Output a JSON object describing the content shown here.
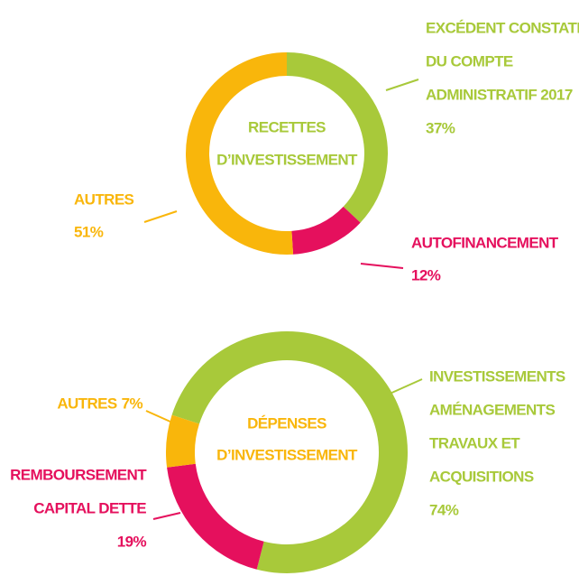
{
  "chart_data": [
    {
      "type": "pie",
      "title": [
        "RECETTES",
        "D’INVESTISSEMENT"
      ],
      "title_color": "#a8c93a",
      "categories": [
        [
          "EXCÉDENT CONSTATÉ",
          "DU COMPTE",
          "ADMINISTRATIF 2017"
        ],
        [
          "AUTOFINANCEMENT"
        ],
        [
          "AUTRES"
        ]
      ],
      "values": [
        37,
        12,
        51
      ],
      "value_labels": [
        "37%",
        "12%",
        "51%"
      ],
      "colors": [
        "#a8c93a",
        "#e5105d",
        "#f9b60b"
      ]
    },
    {
      "type": "pie",
      "title": [
        "DÉPENSES",
        "D’INVESTISSEMENT"
      ],
      "title_color": "#f9b60b",
      "categories": [
        [
          "INVESTISSEMENTS",
          "AMÉNAGEMENTS",
          "TRAVAUX ET",
          "ACQUISITIONS"
        ],
        [
          "REMBOURSEMENT",
          "CAPITAL DETTE"
        ],
        [
          "AUTRES"
        ]
      ],
      "values": [
        74,
        19,
        7
      ],
      "value_labels": [
        "74%",
        "19%",
        "7%"
      ],
      "colors": [
        "#a8c93a",
        "#e5105d",
        "#f9b60b"
      ]
    }
  ]
}
